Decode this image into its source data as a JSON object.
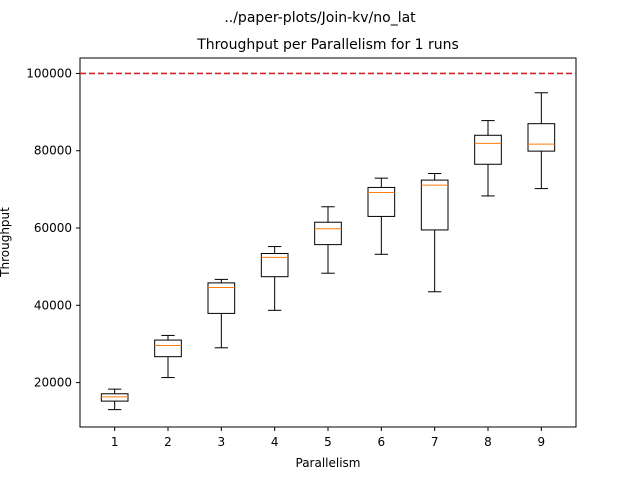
{
  "chart_data": {
    "type": "box",
    "suptitle": "../paper-plots/Join-kv/no_lat",
    "title": "Throughput per Parallelism for 1 runs",
    "xlabel": "Parallelism",
    "ylabel": "Throughput",
    "categories": [
      "1",
      "2",
      "3",
      "4",
      "5",
      "6",
      "7",
      "8",
      "9"
    ],
    "ylim": [
      8500,
      104000
    ],
    "yticks": [
      20000,
      40000,
      60000,
      80000,
      100000
    ],
    "ytick_labels": [
      "20000",
      "40000",
      "60000",
      "80000",
      "100000"
    ],
    "reference_line": {
      "value": 100000,
      "color": "#d62728",
      "style": "dashed"
    },
    "grid": false,
    "box_color": "#000000",
    "median_color": "#ff7f0e",
    "boxes": [
      {
        "category": "1",
        "whisker_low": 13000,
        "q1": 15200,
        "median": 16300,
        "q3": 17100,
        "whisker_high": 18300
      },
      {
        "category": "2",
        "whisker_low": 21300,
        "q1": 26700,
        "median": 29600,
        "q3": 31000,
        "whisker_high": 32200
      },
      {
        "category": "3",
        "whisker_low": 29000,
        "q1": 37900,
        "median": 44600,
        "q3": 45800,
        "whisker_high": 46700
      },
      {
        "category": "4",
        "whisker_low": 38700,
        "q1": 47400,
        "median": 52400,
        "q3": 53400,
        "whisker_high": 55200
      },
      {
        "category": "5",
        "whisker_low": 48300,
        "q1": 55700,
        "median": 59800,
        "q3": 61500,
        "whisker_high": 65500
      },
      {
        "category": "6",
        "whisker_low": 53200,
        "q1": 63000,
        "median": 69200,
        "q3": 70500,
        "whisker_high": 72900
      },
      {
        "category": "7",
        "whisker_low": 43500,
        "q1": 59500,
        "median": 71100,
        "q3": 72400,
        "whisker_high": 74100
      },
      {
        "category": "8",
        "whisker_low": 68300,
        "q1": 76500,
        "median": 81900,
        "q3": 84000,
        "whisker_high": 87800
      },
      {
        "category": "9",
        "whisker_low": 70200,
        "q1": 79900,
        "median": 81700,
        "q3": 87000,
        "whisker_high": 95000
      }
    ]
  }
}
